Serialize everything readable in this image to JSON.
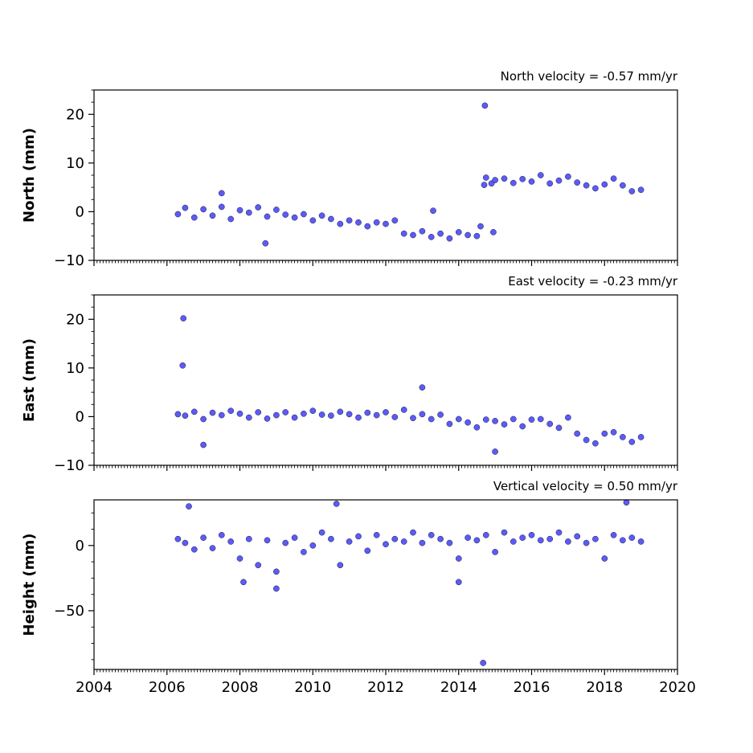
{
  "chart_data": [
    {
      "type": "scatter",
      "title": "North velocity = -0.57 mm/yr",
      "ylabel": "North (mm)",
      "xlim": [
        2004,
        2020
      ],
      "ylim": [
        -10,
        25
      ],
      "yticks": [
        -10,
        0,
        10,
        20
      ],
      "xticks": [
        2004,
        2006,
        2008,
        2010,
        2012,
        2014,
        2016,
        2018,
        2020
      ],
      "xtick_labels_shown": false,
      "marker_color": "#5b5bf7",
      "series": [
        {
          "x": [
            2006.3,
            2006.5,
            2006.75,
            2007.0,
            2007.25,
            2007.5,
            2007.75,
            2008.0,
            2008.25,
            2008.5,
            2008.75,
            2009.0,
            2009.25,
            2009.5,
            2009.75,
            2010.0,
            2010.25,
            2010.5,
            2010.75,
            2011.0,
            2011.25,
            2011.5,
            2011.75,
            2012.0,
            2012.25,
            2012.5,
            2012.75,
            2013.0,
            2013.25,
            2013.5,
            2013.75,
            2014.0,
            2014.25,
            2014.5,
            2014.6,
            2014.7,
            2014.75,
            2014.9,
            2015.0,
            2015.25,
            2015.5,
            2015.75,
            2016.0,
            2016.25,
            2016.5,
            2016.75,
            2017.0,
            2017.25,
            2017.5,
            2017.75,
            2018.0,
            2018.25,
            2018.5,
            2018.75,
            2019.0,
            2007.5,
            2008.7,
            2014.72,
            2014.95,
            2013.3
          ],
          "y": [
            -0.5,
            0.8,
            -1.2,
            0.5,
            -0.8,
            1.0,
            -1.5,
            0.3,
            -0.2,
            0.9,
            -1.0,
            0.4,
            -0.6,
            -1.2,
            -0.5,
            -1.8,
            -0.8,
            -1.5,
            -2.5,
            -1.8,
            -2.2,
            -3.0,
            -2.2,
            -2.5,
            -1.8,
            -4.5,
            -4.8,
            -4.0,
            -5.2,
            -4.5,
            -5.5,
            -4.2,
            -4.8,
            -5.0,
            -3.0,
            5.5,
            7.0,
            5.8,
            6.5,
            6.8,
            5.9,
            6.7,
            6.2,
            7.5,
            5.8,
            6.4,
            7.2,
            6.0,
            5.4,
            4.8,
            5.6,
            6.8,
            5.4,
            4.2,
            4.5,
            3.8,
            -6.5,
            21.8,
            -4.2,
            0.2
          ]
        }
      ]
    },
    {
      "type": "scatter",
      "title": "East velocity = -0.23 mm/yr",
      "ylabel": "East (mm)",
      "xlim": [
        2004,
        2020
      ],
      "ylim": [
        -10,
        25
      ],
      "yticks": [
        -10,
        0,
        10,
        20
      ],
      "xticks": [
        2004,
        2006,
        2008,
        2010,
        2012,
        2014,
        2016,
        2018,
        2020
      ],
      "xtick_labels_shown": false,
      "marker_color": "#5b5bf7",
      "series": [
        {
          "x": [
            2006.3,
            2006.5,
            2006.75,
            2007.0,
            2007.25,
            2007.5,
            2007.75,
            2008.0,
            2008.25,
            2008.5,
            2008.75,
            2009.0,
            2009.25,
            2009.5,
            2009.75,
            2010.0,
            2010.25,
            2010.5,
            2010.75,
            2011.0,
            2011.25,
            2011.5,
            2011.75,
            2012.0,
            2012.25,
            2012.5,
            2012.75,
            2013.0,
            2013.25,
            2013.5,
            2013.75,
            2014.0,
            2014.25,
            2014.5,
            2014.75,
            2015.0,
            2015.25,
            2015.5,
            2015.75,
            2016.0,
            2016.25,
            2016.5,
            2016.75,
            2017.0,
            2017.25,
            2017.5,
            2017.75,
            2018.0,
            2018.25,
            2018.5,
            2018.75,
            2019.0,
            2006.45,
            2006.43,
            2013.0,
            2015.0,
            2007.0
          ],
          "y": [
            0.5,
            0.2,
            1.0,
            -0.5,
            0.8,
            0.3,
            1.2,
            0.6,
            -0.2,
            0.9,
            -0.4,
            0.3,
            0.9,
            -0.2,
            0.6,
            1.2,
            0.4,
            0.2,
            1.0,
            0.5,
            -0.2,
            0.8,
            0.3,
            0.9,
            -0.1,
            1.4,
            -0.3,
            0.5,
            -0.5,
            0.4,
            -1.5,
            -0.5,
            -1.2,
            -2.2,
            -0.6,
            -0.9,
            -1.6,
            -0.5,
            -2.0,
            -0.6,
            -0.5,
            -1.5,
            -2.3,
            -0.2,
            -3.5,
            -4.8,
            -5.5,
            -3.5,
            -3.2,
            -4.2,
            -5.2,
            -4.2,
            20.2,
            10.5,
            6.0,
            -7.2,
            -5.8
          ]
        }
      ]
    },
    {
      "type": "scatter",
      "title": "Vertical velocity = 0.50 mm/yr",
      "ylabel": "Height (mm)",
      "xlim": [
        2004,
        2020
      ],
      "ylim": [
        -95,
        35
      ],
      "yticks": [
        -50,
        0
      ],
      "xticks": [
        2004,
        2006,
        2008,
        2010,
        2012,
        2014,
        2016,
        2018,
        2020
      ],
      "xtick_labels": [
        "2004",
        "2006",
        "2008",
        "2010",
        "2012",
        "2014",
        "2016",
        "2018",
        "2020"
      ],
      "marker_color": "#5b5bf7",
      "series": [
        {
          "x": [
            2006.3,
            2006.5,
            2006.75,
            2007.0,
            2007.25,
            2007.5,
            2007.75,
            2008.0,
            2008.25,
            2008.5,
            2008.75,
            2009.0,
            2009.25,
            2009.5,
            2009.75,
            2010.0,
            2010.25,
            2010.5,
            2010.75,
            2011.0,
            2011.25,
            2011.5,
            2011.75,
            2012.0,
            2012.25,
            2012.5,
            2012.75,
            2013.0,
            2013.25,
            2013.5,
            2013.75,
            2014.0,
            2014.25,
            2014.5,
            2014.75,
            2015.0,
            2015.25,
            2015.5,
            2015.75,
            2016.0,
            2016.25,
            2016.5,
            2016.75,
            2017.0,
            2017.25,
            2017.5,
            2017.75,
            2018.0,
            2018.25,
            2018.5,
            2018.75,
            2019.0,
            2006.6,
            2010.65,
            2014.67,
            2018.6,
            2009.0,
            2008.1,
            2014.0
          ],
          "y": [
            5.0,
            2.0,
            -3.0,
            6.0,
            -2.0,
            8.0,
            3.0,
            -10.0,
            5.0,
            -15.0,
            4.0,
            -20.0,
            2.0,
            6.0,
            -5.0,
            0.0,
            10.0,
            5.0,
            -15.0,
            3.0,
            7.0,
            -4.0,
            8.0,
            1.0,
            5.0,
            3.0,
            10.0,
            2.0,
            8.0,
            5.0,
            2.0,
            -10.0,
            6.0,
            4.0,
            8.0,
            -5.0,
            10.0,
            3.0,
            6.0,
            8.0,
            4.0,
            5.0,
            10.0,
            3.0,
            7.0,
            2.0,
            5.0,
            -10.0,
            8.0,
            4.0,
            6.0,
            3.0,
            30.0,
            32.0,
            -90.0,
            33.0,
            -33.0,
            -28.0,
            -28.0
          ]
        }
      ]
    }
  ]
}
